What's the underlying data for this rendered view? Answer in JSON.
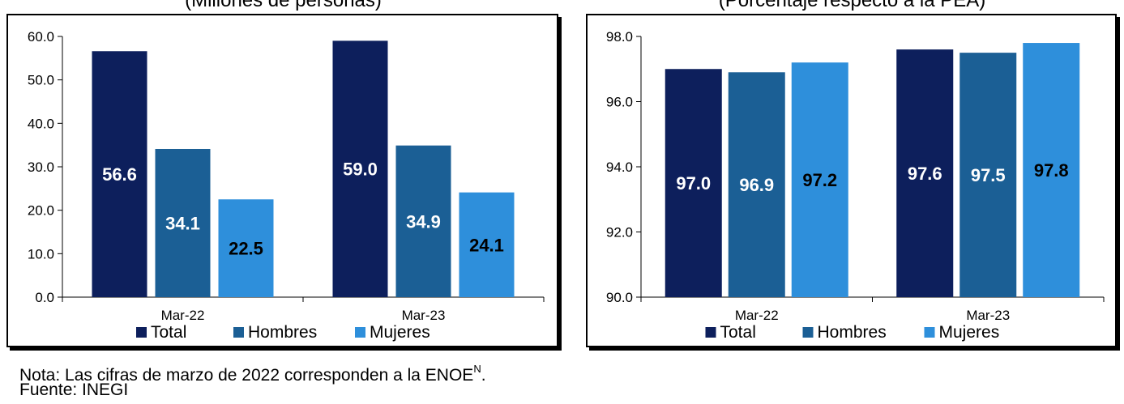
{
  "subtitles": {
    "left": "(Millones de personas)",
    "right": "(Porcentaje respecto a la PEA)"
  },
  "note": {
    "text": "Nota: Las cifras de marzo de 2022 corresponden a la ENOE",
    "superscript": "N",
    "end": ".",
    "source": "Fuente: INEGI"
  },
  "colors": {
    "total": "#0d1f5c",
    "hombres": "#1b5f95",
    "mujeres": "#2e8fdb"
  },
  "chart_data": [
    {
      "type": "bar",
      "title": "(Millones de personas)",
      "categories": [
        "Mar-22",
        "Mar-23"
      ],
      "series": [
        {
          "name": "Total",
          "values": [
            56.6,
            59.0
          ],
          "color_key": "total",
          "label_color": "#ffffff"
        },
        {
          "name": "Hombres",
          "values": [
            34.1,
            34.9
          ],
          "color_key": "hombres",
          "label_color": "#ffffff"
        },
        {
          "name": "Mujeres",
          "values": [
            22.5,
            24.1
          ],
          "color_key": "mujeres",
          "label_color": "#000000"
        }
      ],
      "data_labels": [
        [
          "56.6",
          "59.0"
        ],
        [
          "34.1",
          "34.9"
        ],
        [
          "22.5",
          "24.1"
        ]
      ],
      "ylim": [
        0,
        60
      ],
      "yticks": [
        "0.0",
        "10.0",
        "20.0",
        "30.0",
        "40.0",
        "50.0",
        "60.0"
      ],
      "xlabel": "",
      "ylabel": "",
      "legend": "bottom"
    },
    {
      "type": "bar",
      "title": "(Porcentaje respecto a la PEA)",
      "categories": [
        "Mar-22",
        "Mar-23"
      ],
      "series": [
        {
          "name": "Total",
          "values": [
            97.0,
            97.6
          ],
          "color_key": "total",
          "label_color": "#ffffff"
        },
        {
          "name": "Hombres",
          "values": [
            96.9,
            97.5
          ],
          "color_key": "hombres",
          "label_color": "#ffffff"
        },
        {
          "name": "Mujeres",
          "values": [
            97.2,
            97.8
          ],
          "color_key": "mujeres",
          "label_color": "#000000"
        }
      ],
      "data_labels": [
        [
          "97.0",
          "97.6"
        ],
        [
          "96.9",
          "97.5"
        ],
        [
          "97.2",
          "97.8"
        ]
      ],
      "ylim": [
        90,
        98
      ],
      "yticks": [
        "90.0",
        "92.0",
        "94.0",
        "96.0",
        "98.0"
      ],
      "xlabel": "",
      "ylabel": "",
      "legend": "bottom"
    }
  ]
}
